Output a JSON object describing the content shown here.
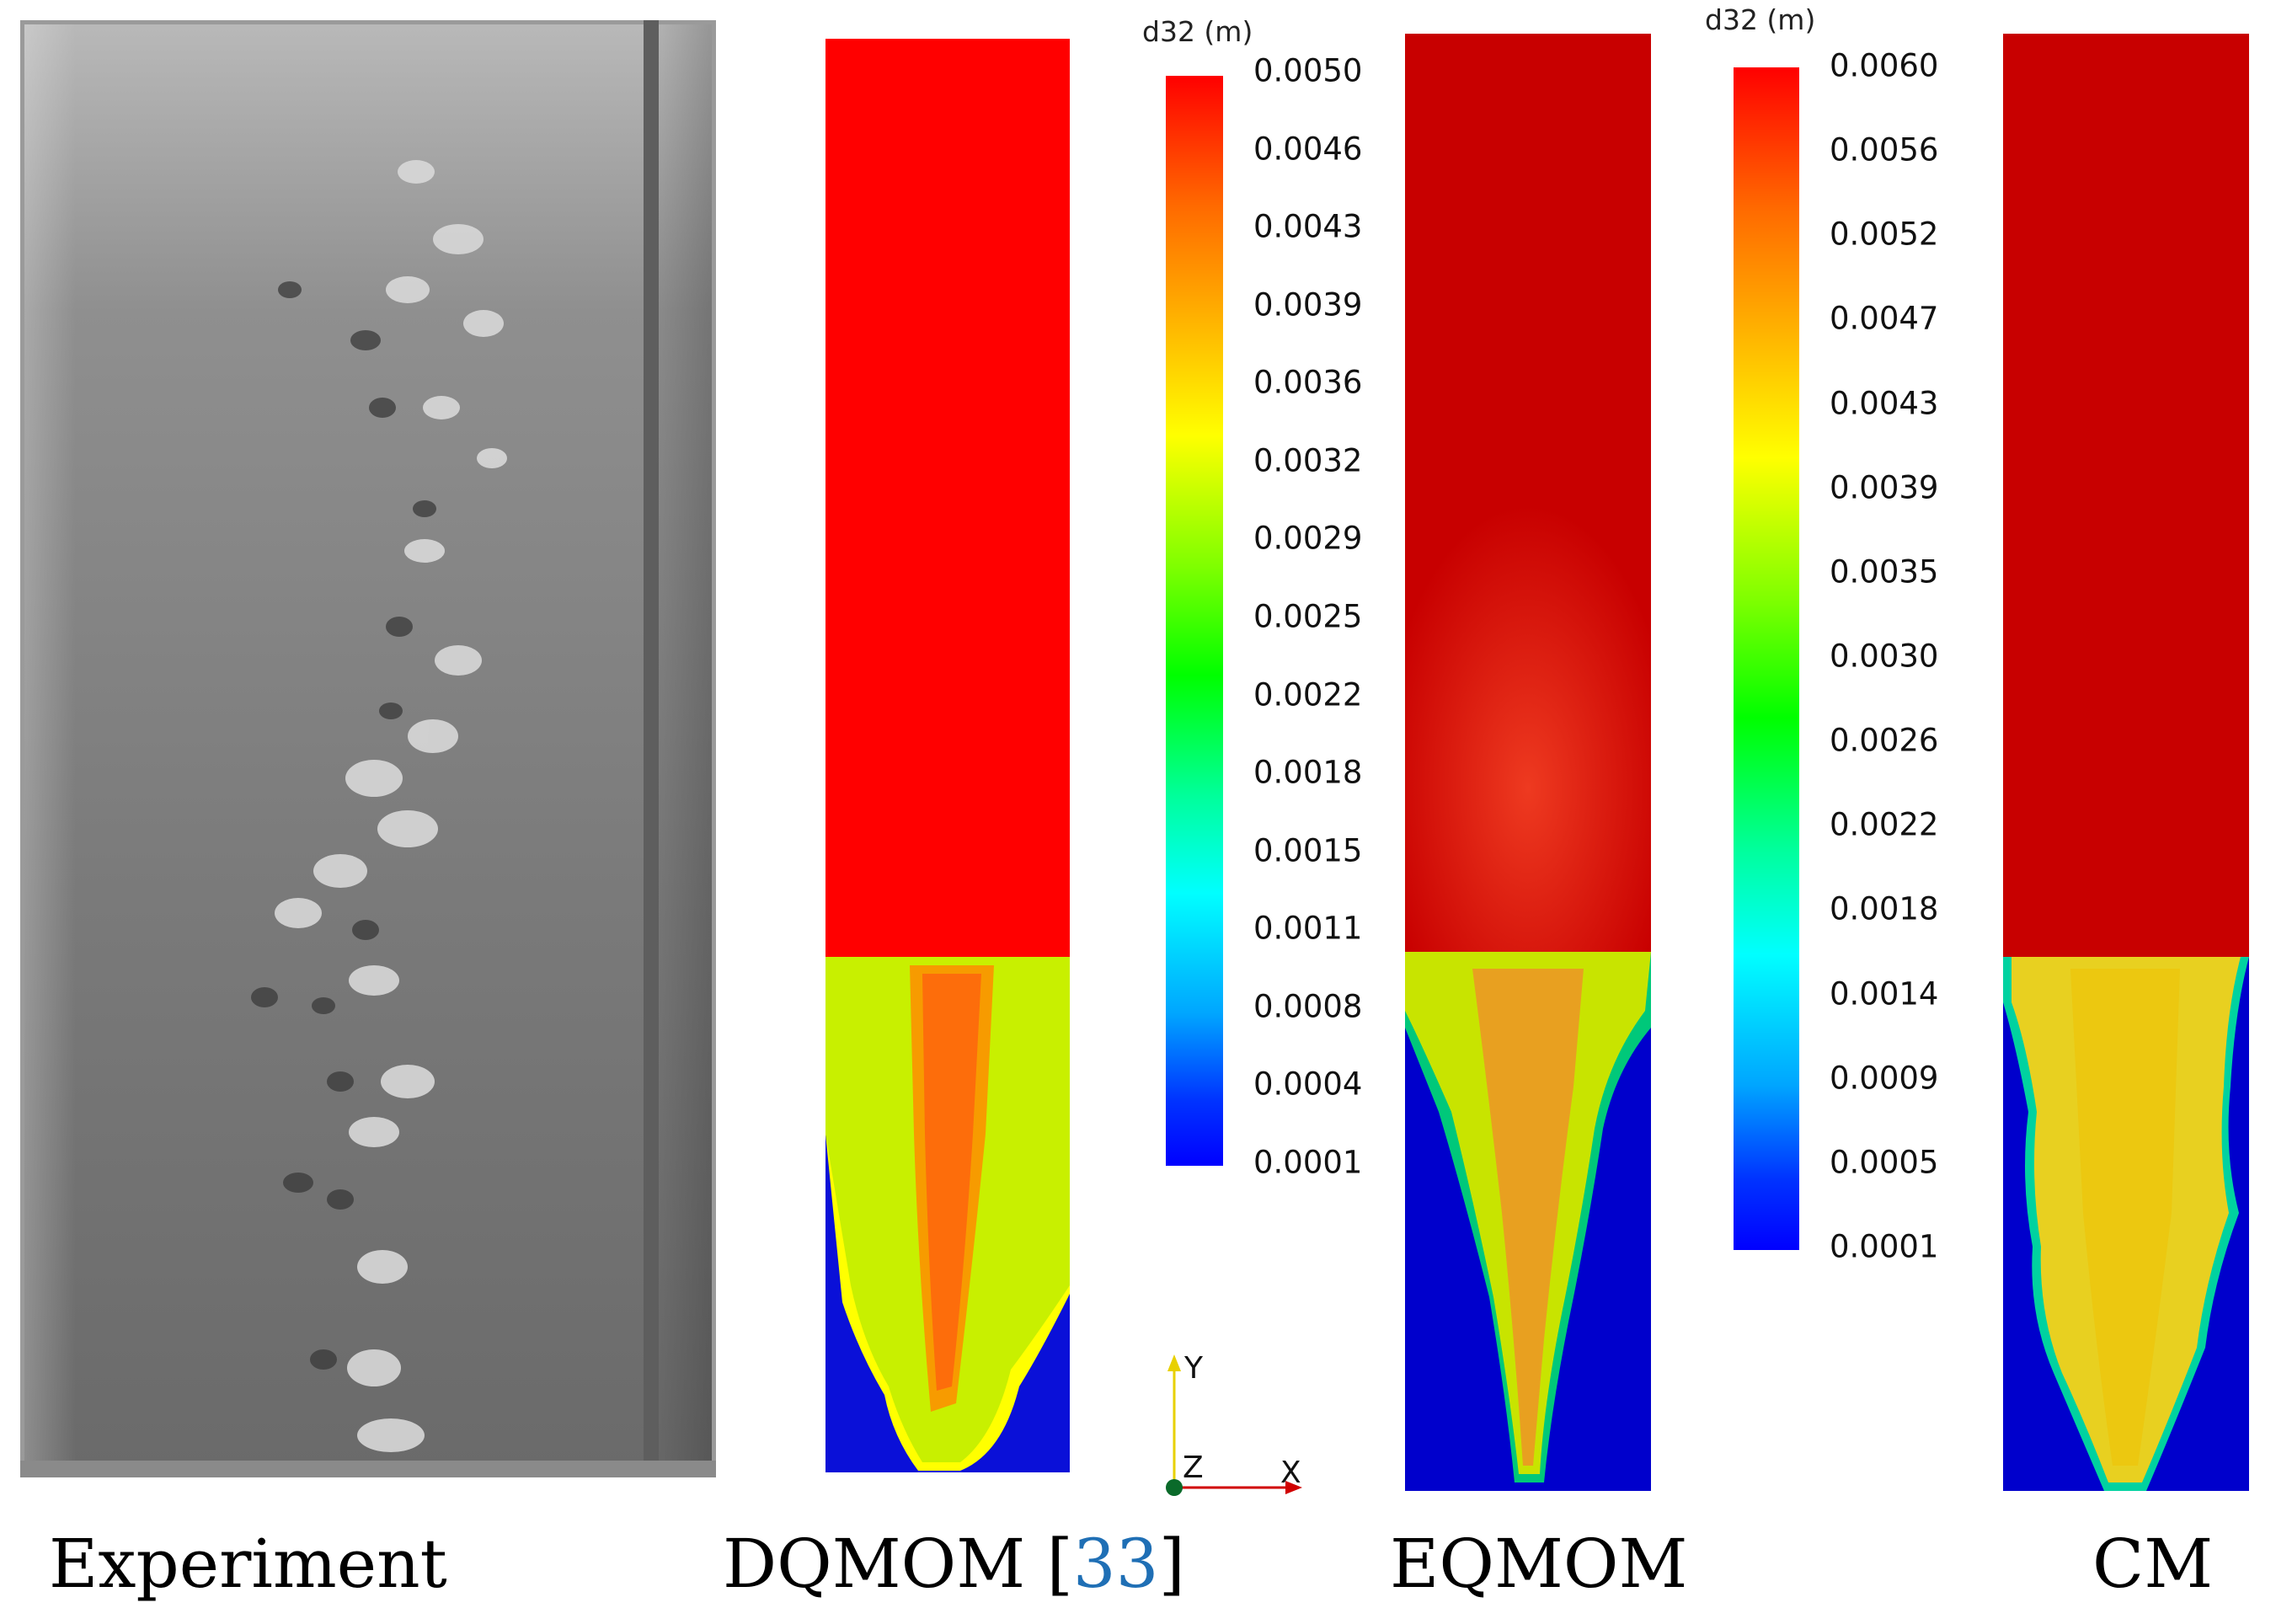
{
  "panels": {
    "experiment": {
      "caption": "Experiment"
    },
    "dqmom": {
      "caption_main": "DQMOM [",
      "caption_ref": "33",
      "caption_end": "]"
    },
    "eqmom": {
      "caption": "EQMOM"
    },
    "cm": {
      "caption": "CM"
    }
  },
  "colorbar_left": {
    "title": "d32 (m)",
    "ticks": [
      "0.0050",
      "0.0046",
      "0.0043",
      "0.0039",
      "0.0036",
      "0.0032",
      "0.0029",
      "0.0025",
      "0.0022",
      "0.0018",
      "0.0015",
      "0.0011",
      "0.0008",
      "0.0004",
      "0.0001"
    ]
  },
  "colorbar_right": {
    "title": "d32 (m)",
    "ticks": [
      "0.0060",
      "0.0056",
      "0.0052",
      "0.0047",
      "0.0043",
      "0.0039",
      "0.0035",
      "0.0030",
      "0.0026",
      "0.0022",
      "0.0018",
      "0.0014",
      "0.0009",
      "0.0005",
      "0.0001"
    ]
  },
  "axes": {
    "y": "Y",
    "z": "Z",
    "x": "X"
  },
  "colors": {
    "red": "#ff0000",
    "dark_red": "#c80000",
    "yellow_green": "#b8f000",
    "orange": "#ff6a10",
    "blue": "#0000cc",
    "light_yellow": "#e8d020",
    "link_blue": "#1f6fb5"
  }
}
